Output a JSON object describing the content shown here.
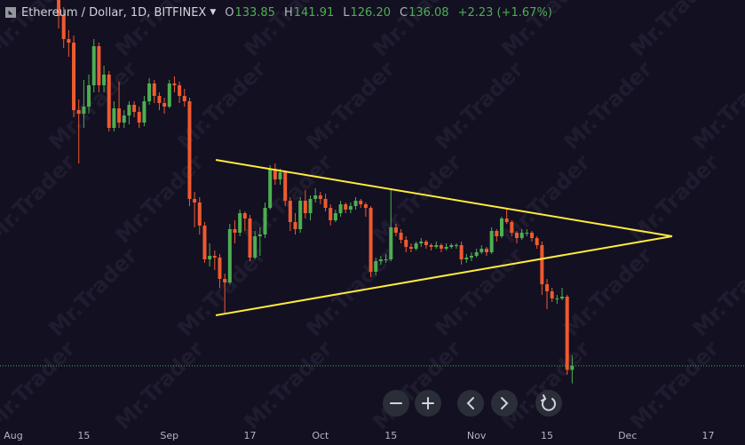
{
  "watermark": "Mr.Trader",
  "header": {
    "title": "Ethereum / Dollar, 1D, BITFINEX",
    "ohlc": [
      {
        "label": "O",
        "value": "133.85"
      },
      {
        "label": "H",
        "value": "141.91"
      },
      {
        "label": "L",
        "value": "126.20"
      },
      {
        "label": "C",
        "value": "136.08"
      }
    ],
    "change": "+2.23 (+1.67%)"
  },
  "chart_data": {
    "type": "candlestick",
    "up_color": "#4caf50",
    "down_color": "#ef5a2f",
    "ylim": [
      102,
      342
    ],
    "last_price_line": true,
    "categories": [
      "Aug",
      null,
      null,
      null,
      null,
      null,
      null,
      null,
      null,
      null,
      null,
      null,
      null,
      null,
      "15",
      null,
      null,
      null,
      null,
      null,
      null,
      null,
      null,
      null,
      null,
      null,
      null,
      null,
      null,
      null,
      null,
      "Sep",
      null,
      null,
      null,
      null,
      null,
      null,
      null,
      null,
      null,
      null,
      null,
      null,
      null,
      null,
      null,
      "17",
      null,
      null,
      null,
      null,
      null,
      null,
      null,
      null,
      null,
      null,
      null,
      null,
      null,
      "Oct",
      null,
      null,
      null,
      null,
      null,
      null,
      null,
      null,
      null,
      null,
      null,
      null,
      null,
      "15",
      null,
      null,
      null,
      null,
      null,
      null,
      null,
      null,
      null,
      null,
      null,
      null,
      null,
      null,
      null,
      null,
      "Nov",
      null,
      null,
      null,
      null,
      null,
      null,
      null,
      null,
      null,
      null,
      null,
      null,
      null,
      "15",
      null,
      null,
      null,
      null,
      null,
      null,
      null,
      null,
      null,
      null,
      null,
      null,
      null,
      null,
      null,
      "Dec",
      null,
      null,
      null,
      null,
      null,
      null,
      null,
      null,
      null,
      null,
      null,
      null,
      null,
      null,
      null,
      "17",
      null,
      null,
      null
    ],
    "open": [
      null,
      null,
      null,
      null,
      null,
      null,
      null,
      null,
      null,
      363,
      333,
      320,
      318,
      280,
      278,
      282,
      294,
      316,
      294,
      300,
      270,
      281,
      273,
      277,
      283,
      279,
      273,
      285,
      295,
      288,
      284,
      282,
      295,
      294,
      288,
      285,
      230,
      228,
      215,
      196,
      198,
      197,
      185,
      183,
      213,
      211,
      222,
      219,
      197,
      209,
      210,
      225,
      247,
      241,
      245,
      229,
      217,
      213,
      229,
      222,
      230,
      232,
      230,
      225,
      218,
      222,
      227,
      224,
      226,
      229,
      227,
      225,
      189,
      195,
      196,
      196,
      214,
      211,
      207,
      203,
      202,
      205,
      206,
      204,
      203,
      204,
      202,
      203,
      204,
      204,
      196,
      197,
      198,
      200,
      202,
      200,
      212,
      209,
      219,
      217,
      211,
      208,
      211,
      211,
      208,
      204,
      182,
      178,
      174,
      174,
      175,
      133.85,
      null,
      null,
      null,
      null,
      null,
      null,
      null,
      null,
      null,
      null,
      null,
      null,
      null,
      null,
      null,
      null,
      null,
      null,
      null,
      null,
      null,
      null,
      null,
      null,
      null,
      null,
      null,
      null,
      null,
      null
    ],
    "high": [
      null,
      null,
      null,
      null,
      null,
      null,
      null,
      null,
      null,
      366,
      338,
      325,
      322,
      286,
      297,
      300,
      320,
      318,
      305,
      302,
      285,
      296,
      280,
      285,
      285,
      282,
      288,
      298,
      297,
      290,
      287,
      297,
      299,
      296,
      292,
      287,
      234,
      231,
      217,
      205,
      201,
      199,
      188,
      216,
      218,
      224,
      223,
      221,
      212,
      214,
      228,
      249,
      250,
      247,
      246,
      231,
      222,
      231,
      235,
      232,
      236,
      234,
      233,
      227,
      224,
      229,
      228,
      228,
      231,
      230,
      228,
      226,
      197,
      198,
      199,
      236,
      216,
      213,
      209,
      205,
      206,
      208,
      207,
      205,
      206,
      205,
      205,
      205,
      205,
      206,
      199,
      200,
      202,
      204,
      203,
      214,
      213,
      220,
      225,
      218,
      212,
      213,
      213,
      212,
      209,
      206,
      185,
      180,
      176,
      180,
      176,
      141.91,
      null,
      null,
      null,
      null,
      null,
      null,
      null,
      null,
      null,
      null,
      null,
      null,
      null,
      null,
      null,
      null,
      null,
      null,
      null,
      null,
      null,
      null,
      null,
      null,
      null,
      null,
      null,
      null,
      null,
      null
    ],
    "low": [
      null,
      null,
      null,
      null,
      null,
      null,
      null,
      null,
      null,
      326,
      315,
      310,
      276,
      250,
      270,
      278,
      290,
      290,
      290,
      268,
      268,
      270,
      270,
      272,
      276,
      270,
      271,
      283,
      284,
      280,
      278,
      281,
      290,
      284,
      282,
      226,
      214,
      210,
      194,
      192,
      190,
      180,
      166,
      182,
      205,
      209,
      212,
      195,
      196,
      198,
      208,
      224,
      238,
      238,
      226,
      212,
      210,
      211,
      219,
      218,
      228,
      227,
      223,
      215,
      217,
      220,
      222,
      222,
      224,
      225,
      220,
      186,
      187,
      193,
      194,
      195,
      209,
      205,
      200,
      200,
      201,
      203,
      202,
      201,
      202,
      200,
      201,
      202,
      202,
      193,
      194,
      195,
      197,
      199,
      198,
      199,
      206,
      208,
      216,
      209,
      205,
      207,
      209,
      206,
      202,
      176,
      168,
      172,
      171,
      173,
      131,
      126.2,
      null,
      null,
      null,
      null,
      null,
      null,
      null,
      null,
      null,
      null,
      null,
      null,
      null,
      null,
      null,
      null,
      null,
      null,
      null,
      null,
      null,
      null,
      null,
      null,
      null,
      null,
      null,
      null,
      null,
      null
    ],
    "close": [
      null,
      null,
      null,
      null,
      null,
      null,
      null,
      null,
      null,
      333,
      320,
      318,
      280,
      278,
      282,
      294,
      316,
      294,
      300,
      270,
      281,
      273,
      277,
      283,
      279,
      273,
      285,
      295,
      288,
      284,
      282,
      295,
      294,
      288,
      285,
      230,
      228,
      215,
      196,
      198,
      197,
      185,
      183,
      213,
      211,
      222,
      219,
      197,
      209,
      210,
      225,
      247,
      241,
      245,
      229,
      217,
      213,
      229,
      222,
      230,
      232,
      230,
      225,
      218,
      222,
      227,
      224,
      226,
      229,
      227,
      225,
      189,
      195,
      196,
      196,
      214,
      211,
      207,
      203,
      202,
      205,
      206,
      204,
      203,
      204,
      202,
      203,
      204,
      204,
      196,
      197,
      198,
      200,
      202,
      200,
      212,
      209,
      219,
      217,
      211,
      208,
      211,
      211,
      208,
      204,
      182,
      178,
      174,
      174,
      175,
      133.85,
      136.08,
      null,
      null,
      null,
      null,
      null,
      null,
      null,
      null,
      null,
      null,
      null,
      null,
      null,
      null,
      null,
      null,
      null,
      null,
      null,
      null,
      null,
      null,
      null,
      null,
      null,
      null,
      null,
      null,
      null,
      null
    ]
  }
}
